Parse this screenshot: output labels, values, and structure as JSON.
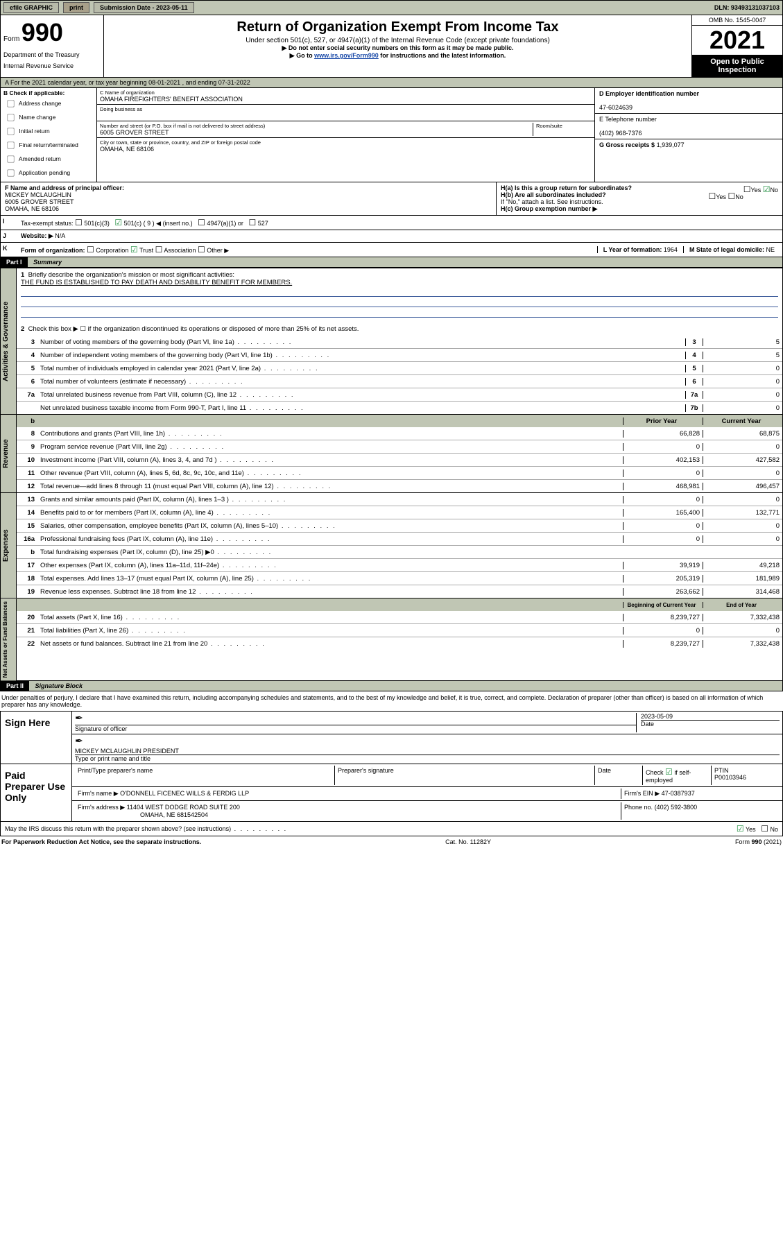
{
  "topbar": {
    "efile": "efile GRAPHIC",
    "print": "print",
    "submission_label": "Submission Date - 2023-05-11",
    "dln_label": "DLN: 93493131037103"
  },
  "header": {
    "form_word": "Form",
    "form_num": "990",
    "dept": "Department of the Treasury",
    "irs": "Internal Revenue Service",
    "title": "Return of Organization Exempt From Income Tax",
    "sub1": "Under section 501(c), 527, or 4947(a)(1) of the Internal Revenue Code (except private foundations)",
    "sub2": "▶ Do not enter social security numbers on this form as it may be made public.",
    "sub3_pre": "▶ Go to ",
    "sub3_link": "www.irs.gov/Form990",
    "sub3_post": " for instructions and the latest information.",
    "omb": "OMB No. 1545-0047",
    "year": "2021",
    "open": "Open to Public Inspection"
  },
  "bar_a": "A  For the 2021 calendar year, or tax year beginning 08-01-2021   , and ending 07-31-2022",
  "colB": {
    "hdr": "B Check if applicable:",
    "i1": "Address change",
    "i2": "Name change",
    "i3": "Initial return",
    "i4": "Final return/terminated",
    "i5": "Amended return",
    "i6": "Application pending"
  },
  "colC": {
    "name_lbl": "C Name of organization",
    "name": "OMAHA FIREFIGHTERS' BENEFIT ASSOCIATION",
    "dba_lbl": "Doing business as",
    "addr_lbl": "Number and street (or P.O. box if mail is not delivered to street address)",
    "room_lbl": "Room/suite",
    "addr": "6005 GROVER STREET",
    "city_lbl": "City or town, state or province, country, and ZIP or foreign postal code",
    "city": "OMAHA, NE  68106"
  },
  "colR": {
    "d_lbl": "D Employer identification number",
    "ein": "47-6024639",
    "e_lbl": "E Telephone number",
    "phone": "(402) 968-7376",
    "g_lbl": "G Gross receipts $",
    "gross": "1,939,077"
  },
  "officer": {
    "f_lbl": "F Name and address of principal officer:",
    "name": "MICKEY MCLAUGHLIN",
    "addr1": "6005 GROVER STREET",
    "addr2": "OMAHA, NE  68106"
  },
  "h": {
    "a": "H(a)  Is this a group return for subordinates?",
    "b": "H(b)  Are all subordinates included?",
    "ifno": "If \"No,\" attach a list. See instructions.",
    "c": "H(c)  Group exemption number ▶"
  },
  "row_i": {
    "lbl": "I",
    "tax": "Tax-exempt status:",
    "o1": "501(c)(3)",
    "o2": "501(c) ( 9 ) ◀ (insert no.)",
    "o3": "4947(a)(1) or",
    "o4": "527"
  },
  "row_j": {
    "lbl": "J",
    "text": "Website: ▶",
    "val": "N/A"
  },
  "row_k": {
    "lbl": "K",
    "text": "Form of organization:",
    "o1": "Corporation",
    "o2": "Trust",
    "o3": "Association",
    "o4": "Other ▶",
    "l_lbl": "L Year of formation:",
    "l_val": "1964",
    "m_lbl": "M State of legal domicile:",
    "m_val": "NE"
  },
  "part1": {
    "hdr": "Part I",
    "title": "Summary"
  },
  "mission": {
    "n": "1",
    "lbl": "Briefly describe the organization's mission or most significant activities:",
    "text": "THE FUND IS ESTABLISHED TO PAY DEATH AND DISABILITY BENEFIT FOR MEMBERS.",
    "l2n": "2",
    "l2": "Check this box ▶ ☐  if the organization discontinued its operations or disposed of more than 25% of its net assets."
  },
  "lines_gov": [
    {
      "n": "3",
      "d": "Number of voting members of the governing body (Part VI, line 1a)",
      "box": "3",
      "v": "5"
    },
    {
      "n": "4",
      "d": "Number of independent voting members of the governing body (Part VI, line 1b)",
      "box": "4",
      "v": "5"
    },
    {
      "n": "5",
      "d": "Total number of individuals employed in calendar year 2021 (Part V, line 2a)",
      "box": "5",
      "v": "0"
    },
    {
      "n": "6",
      "d": "Total number of volunteers (estimate if necessary)",
      "box": "6",
      "v": "0"
    },
    {
      "n": "7a",
      "d": "Total unrelated business revenue from Part VIII, column (C), line 12",
      "box": "7a",
      "v": "0"
    },
    {
      "n": "",
      "d": "Net unrelated business taxable income from Form 990-T, Part I, line 11",
      "box": "7b",
      "v": "0"
    }
  ],
  "colhdrs": {
    "prior": "Prior Year",
    "current": "Current Year"
  },
  "revenue": [
    {
      "n": "8",
      "d": "Contributions and grants (Part VIII, line 1h)",
      "p": "66,828",
      "c": "68,875"
    },
    {
      "n": "9",
      "d": "Program service revenue (Part VIII, line 2g)",
      "p": "0",
      "c": "0"
    },
    {
      "n": "10",
      "d": "Investment income (Part VIII, column (A), lines 3, 4, and 7d )",
      "p": "402,153",
      "c": "427,582"
    },
    {
      "n": "11",
      "d": "Other revenue (Part VIII, column (A), lines 5, 6d, 8c, 9c, 10c, and 11e)",
      "p": "0",
      "c": "0"
    },
    {
      "n": "12",
      "d": "Total revenue—add lines 8 through 11 (must equal Part VIII, column (A), line 12)",
      "p": "468,981",
      "c": "496,457"
    }
  ],
  "expenses": [
    {
      "n": "13",
      "d": "Grants and similar amounts paid (Part IX, column (A), lines 1–3 )",
      "p": "0",
      "c": "0"
    },
    {
      "n": "14",
      "d": "Benefits paid to or for members (Part IX, column (A), line 4)",
      "p": "165,400",
      "c": "132,771"
    },
    {
      "n": "15",
      "d": "Salaries, other compensation, employee benefits (Part IX, column (A), lines 5–10)",
      "p": "0",
      "c": "0"
    },
    {
      "n": "16a",
      "d": "Professional fundraising fees (Part IX, column (A), line 11e)",
      "p": "0",
      "c": "0"
    },
    {
      "n": "b",
      "d": "Total fundraising expenses (Part IX, column (D), line 25) ▶0",
      "p": "",
      "c": "",
      "shade": true
    },
    {
      "n": "17",
      "d": "Other expenses (Part IX, column (A), lines 11a–11d, 11f–24e)",
      "p": "39,919",
      "c": "49,218"
    },
    {
      "n": "18",
      "d": "Total expenses. Add lines 13–17 (must equal Part IX, column (A), line 25)",
      "p": "205,319",
      "c": "181,989"
    },
    {
      "n": "19",
      "d": "Revenue less expenses. Subtract line 18 from line 12",
      "p": "263,662",
      "c": "314,468"
    }
  ],
  "netassets_hdr": {
    "beg": "Beginning of Current Year",
    "end": "End of Year"
  },
  "netassets": [
    {
      "n": "20",
      "d": "Total assets (Part X, line 16)",
      "p": "8,239,727",
      "c": "7,332,438"
    },
    {
      "n": "21",
      "d": "Total liabilities (Part X, line 26)",
      "p": "0",
      "c": "0"
    },
    {
      "n": "22",
      "d": "Net assets or fund balances. Subtract line 21 from line 20",
      "p": "8,239,727",
      "c": "7,332,438"
    }
  ],
  "part2": {
    "hdr": "Part II",
    "title": "Signature Block"
  },
  "penalties": "Under penalties of perjury, I declare that I have examined this return, including accompanying schedules and statements, and to the best of my knowledge and belief, it is true, correct, and complete. Declaration of preparer (other than officer) is based on all information of which preparer has any knowledge.",
  "sign": {
    "here": "Sign Here",
    "sig_lbl": "Signature of officer",
    "date_lbl": "Date",
    "date": "2023-05-09",
    "name": "MICKEY MCLAUGHLIN  PRESIDENT",
    "name_lbl": "Type or print name and title"
  },
  "paid": {
    "hdr": "Paid Preparer Use Only",
    "c1": "Print/Type preparer's name",
    "c2": "Preparer's signature",
    "c3": "Date",
    "c4a": "Check",
    "c4b": "if self-employed",
    "c5": "PTIN",
    "ptin": "P00103946",
    "firm_lbl": "Firm's name    ▶",
    "firm": "O'DONNELL FICENEC WILLS & FERDIG LLP",
    "firm_ein_lbl": "Firm's EIN ▶",
    "firm_ein": "47-0387937",
    "addr_lbl": "Firm's address ▶",
    "addr1": "11404 WEST DODGE ROAD SUITE 200",
    "addr2": "OMAHA, NE  681542504",
    "phone_lbl": "Phone no.",
    "phone": "(402) 592-3800"
  },
  "discuss": {
    "q": "May the IRS discuss this return with the preparer shown above? (see instructions)",
    "yes": "Yes",
    "no": "No"
  },
  "footer": {
    "left": "For Paperwork Reduction Act Notice, see the separate instructions.",
    "mid": "Cat. No. 11282Y",
    "right": "Form 990 (2021)"
  },
  "side": {
    "gov": "Activities & Governance",
    "rev": "Revenue",
    "exp": "Expenses",
    "net": "Net Assets or Fund Balances"
  },
  "yesno": {
    "yes": "Yes",
    "no": "No"
  }
}
